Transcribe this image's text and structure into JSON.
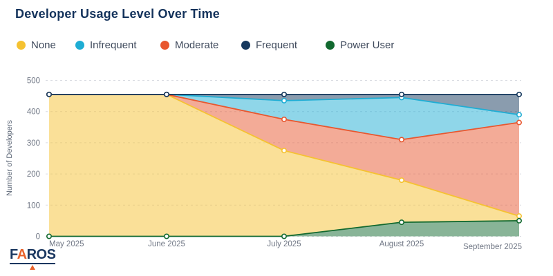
{
  "title": "Developer Usage Level Over Time",
  "y_axis": {
    "label": "Number of Developers",
    "ticks": [
      0,
      100,
      200,
      300,
      400,
      500
    ]
  },
  "x_axis": {
    "categories": [
      "May 2025",
      "June 2025",
      "July 2025",
      "August 2025",
      "September 2025"
    ]
  },
  "chart_data": {
    "type": "area",
    "stacked": true,
    "x": [
      "May 2025",
      "June 2025",
      "July 2025",
      "August 2025",
      "September 2025"
    ],
    "series": [
      {
        "name": "None",
        "color": "#F5C231",
        "values": [
          455,
          455,
          275,
          135,
          15
        ]
      },
      {
        "name": "Infrequent",
        "color": "#1FADD4",
        "values": [
          0,
          0,
          60,
          135,
          25
        ]
      },
      {
        "name": "Moderate",
        "color": "#E8572F",
        "values": [
          0,
          0,
          100,
          130,
          300
        ]
      },
      {
        "name": "Frequent",
        "color": "#16395E",
        "values": [
          0,
          0,
          20,
          10,
          65
        ]
      },
      {
        "name": "Power User",
        "color": "#12692F",
        "values": [
          0,
          0,
          0,
          45,
          50
        ]
      }
    ],
    "stack_order_bottom_to_top": [
      "Power User",
      "None",
      "Moderate",
      "Infrequent",
      "Frequent"
    ],
    "total_per_month": 455,
    "title": "Developer Usage Level Over Time",
    "xlabel": "",
    "ylabel": "Number of Developers",
    "ylim": [
      0,
      500
    ],
    "grid": "horizontal-dashed",
    "legend_position": "top",
    "marker": "open-circle"
  },
  "colors": {
    "title_text": "#13325B",
    "legend_text": "#3F4A5C",
    "axis_text": "#6F7684",
    "gridline": "#D9DBE1",
    "background": "#FFFFFF",
    "logo_navy": "#1A3760",
    "logo_orange": "#E8632C"
  },
  "logo": {
    "text": "FAROS"
  }
}
